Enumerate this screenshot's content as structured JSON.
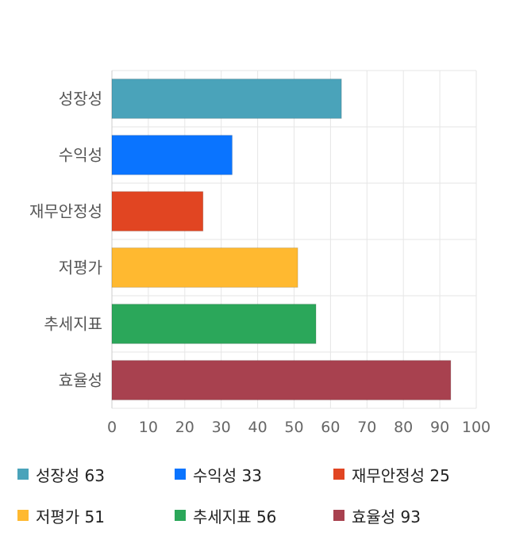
{
  "chart_data": {
    "type": "bar",
    "orientation": "horizontal",
    "categories": [
      "성장성",
      "수익성",
      "재무안정성",
      "저평가",
      "추세지표",
      "효율성"
    ],
    "values": [
      63,
      33,
      25,
      51,
      56,
      93
    ],
    "colors": [
      "#4aa3ba",
      "#0a74ff",
      "#e14522",
      "#ffb930",
      "#2ba75a",
      "#a8414f"
    ],
    "xlim": [
      0,
      100
    ],
    "xticks": [
      0,
      10,
      20,
      30,
      40,
      50,
      60,
      70,
      80,
      90,
      100
    ],
    "grid": true,
    "legend_position": "bottom"
  },
  "legend": [
    {
      "label": "성장성 63",
      "color": "#4aa3ba"
    },
    {
      "label": "수익성 33",
      "color": "#0a74ff"
    },
    {
      "label": "재무안정성 25",
      "color": "#e14522"
    },
    {
      "label": "저평가 51",
      "color": "#ffb930"
    },
    {
      "label": "추세지표 56",
      "color": "#2ba75a"
    },
    {
      "label": "효율성 93",
      "color": "#a8414f"
    }
  ]
}
